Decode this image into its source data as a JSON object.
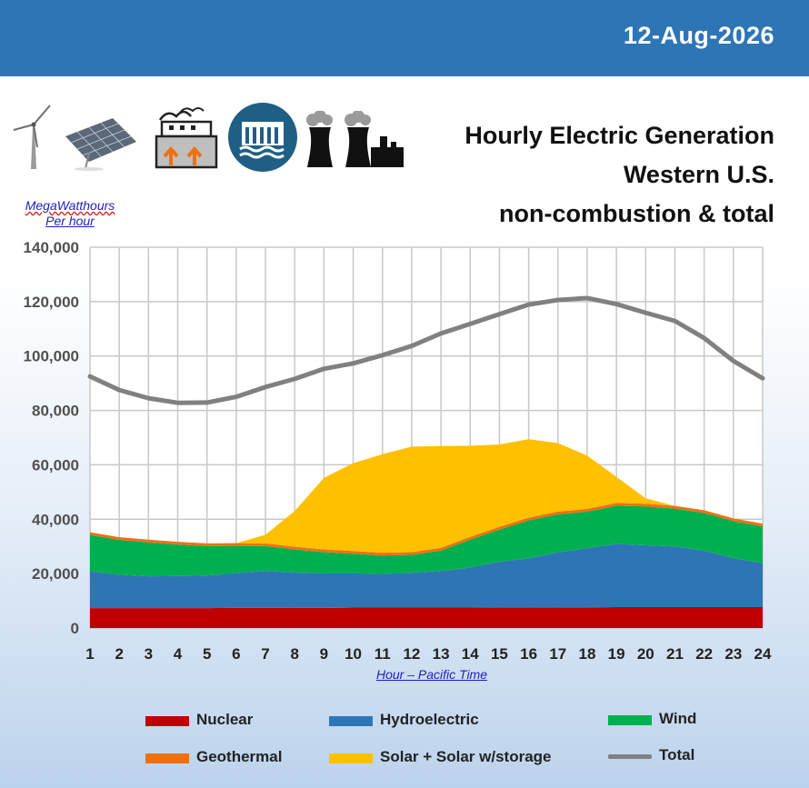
{
  "header": {
    "date": "12-Aug-2026"
  },
  "title": {
    "line1": "Hourly Electric Generation",
    "line2": "Western U.S.",
    "line3": "non-combustion & total"
  },
  "units": {
    "line1": "MegaWatthours",
    "line2": "Per hour"
  },
  "icons": [
    "wind-turbine-icon",
    "solar-panel-icon",
    "geothermal-plant-icon",
    "hydroelectric-dam-icon",
    "nuclear-plant-icon"
  ],
  "colors": {
    "header": "#2e75b6",
    "nuclear": "#c00000",
    "hydro": "#2e75b6",
    "wind": "#00b050",
    "geothermal": "#f07010",
    "solar": "#ffc000",
    "total": "#808080"
  },
  "chart_data": {
    "type": "area",
    "xlabel": "Hour – Pacific Time",
    "ylabel": "MegaWatthours Per hour",
    "x": [
      1,
      2,
      3,
      4,
      5,
      6,
      7,
      8,
      9,
      10,
      11,
      12,
      13,
      14,
      15,
      16,
      17,
      18,
      19,
      20,
      21,
      22,
      23,
      24
    ],
    "ylim": [
      0,
      140000
    ],
    "yticks": [
      0,
      20000,
      40000,
      60000,
      80000,
      100000,
      120000,
      140000
    ],
    "ytick_labels": [
      "0",
      "20,000",
      "40,000",
      "60,000",
      "80,000",
      "100,000",
      "120,000",
      "140,000"
    ],
    "grid": true,
    "stacked": true,
    "series": [
      {
        "name": "Nuclear",
        "color": "#c00000",
        "values": [
          7300,
          7300,
          7300,
          7300,
          7300,
          7400,
          7400,
          7400,
          7400,
          7500,
          7500,
          7500,
          7500,
          7500,
          7600,
          7600,
          7600,
          7600,
          7700,
          7700,
          7700,
          7700,
          7700,
          7700
        ]
      },
      {
        "name": "Hydroelectric",
        "color": "#2e75b6",
        "values": [
          13500,
          12300,
          11700,
          11800,
          12000,
          12800,
          13600,
          13000,
          12700,
          12600,
          12400,
          12800,
          13500,
          14700,
          16800,
          18000,
          20200,
          21800,
          23200,
          22700,
          22300,
          20800,
          18000,
          16200
        ]
      },
      {
        "name": "Wind",
        "color": "#00b050",
        "values": [
          13400,
          12800,
          12500,
          11600,
          10800,
          10000,
          9100,
          8500,
          7800,
          7200,
          6800,
          6600,
          7500,
          10300,
          11800,
          14000,
          14000,
          13400,
          14100,
          14300,
          13900,
          13800,
          13600,
          13500
        ]
      },
      {
        "name": "Geothermal",
        "color": "#f07010",
        "values": [
          1000,
          1000,
          1000,
          1000,
          1000,
          1000,
          1000,
          1000,
          1000,
          1000,
          1000,
          1000,
          1000,
          1000,
          1000,
          1000,
          1000,
          1000,
          1000,
          1000,
          1000,
          1000,
          1000,
          1000
        ]
      },
      {
        "name": "Solar + Solar w/storage",
        "color": "#ffc000",
        "values": [
          0,
          0,
          0,
          0,
          0,
          0,
          3200,
          13100,
          26300,
          32300,
          36200,
          38800,
          37400,
          33500,
          30300,
          28800,
          25200,
          19600,
          9600,
          2000,
          0,
          0,
          0,
          0
        ]
      }
    ],
    "line": {
      "name": "Total",
      "color": "#808080",
      "values": [
        92500,
        87500,
        84500,
        82800,
        82900,
        85000,
        88600,
        91600,
        95300,
        97300,
        100300,
        103700,
        108300,
        111800,
        115400,
        118900,
        120600,
        121300,
        119100,
        115900,
        112900,
        106600,
        98200,
        91800
      ]
    },
    "legend": [
      "Nuclear",
      "Hydroelectric",
      "Wind",
      "Geothermal",
      "Solar + Solar w/storage",
      "Total"
    ]
  }
}
